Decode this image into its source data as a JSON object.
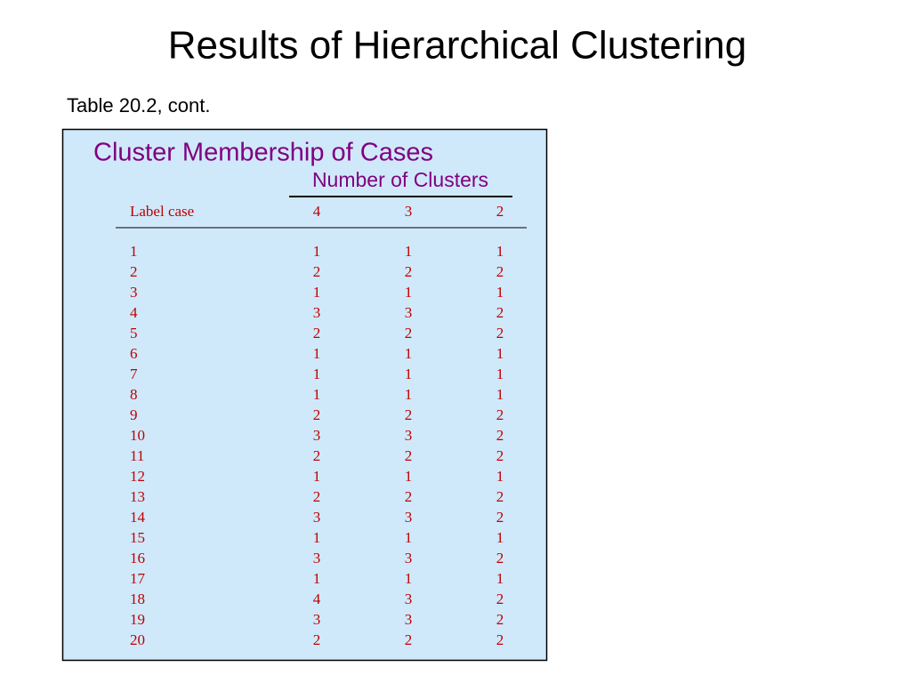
{
  "title": "Results of Hierarchical Clustering",
  "subtitle": "Table 20.2, cont.",
  "table": {
    "caption": "Cluster Membership of Cases",
    "group_header": "Number of Clusters",
    "columns": [
      "Label case",
      4,
      3,
      2
    ],
    "rows": [
      [
        1,
        1,
        1,
        1
      ],
      [
        2,
        2,
        2,
        2
      ],
      [
        3,
        1,
        1,
        1
      ],
      [
        4,
        3,
        3,
        2
      ],
      [
        5,
        2,
        2,
        2
      ],
      [
        6,
        1,
        1,
        1
      ],
      [
        7,
        1,
        1,
        1
      ],
      [
        8,
        1,
        1,
        1
      ],
      [
        9,
        2,
        2,
        2
      ],
      [
        10,
        3,
        3,
        2
      ],
      [
        11,
        2,
        2,
        2
      ],
      [
        12,
        1,
        1,
        1
      ],
      [
        13,
        2,
        2,
        2
      ],
      [
        14,
        3,
        3,
        2
      ],
      [
        15,
        1,
        1,
        1
      ],
      [
        16,
        3,
        3,
        2
      ],
      [
        17,
        1,
        1,
        1
      ],
      [
        18,
        4,
        3,
        2
      ],
      [
        19,
        3,
        3,
        2
      ],
      [
        20,
        2,
        2,
        2
      ]
    ]
  }
}
